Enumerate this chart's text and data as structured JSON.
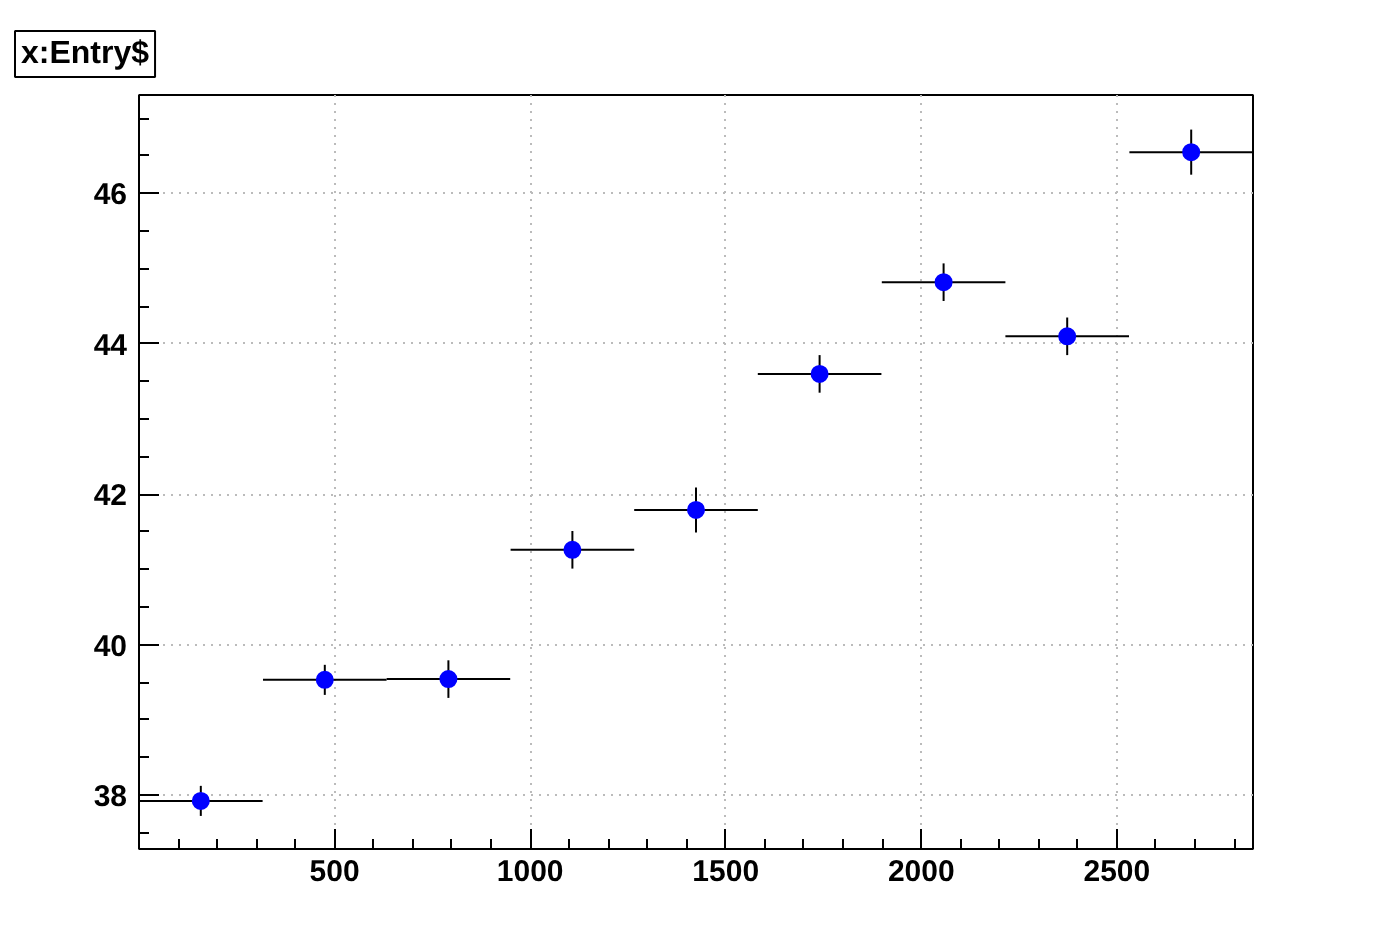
{
  "chart_data": {
    "type": "scatter",
    "title": "x:Entry$",
    "x": [
      158,
      475,
      791,
      1108,
      1424,
      1740,
      2057,
      2373,
      2690
    ],
    "series": [
      {
        "color": "#0000ff",
        "values": [
          37.92,
          39.53,
          39.54,
          41.26,
          41.79,
          43.6,
          44.82,
          44.1,
          46.55
        ],
        "errors": [
          0.2,
          0.2,
          0.25,
          0.25,
          0.3,
          0.25,
          0.25,
          0.25,
          0.3
        ],
        "xerrors": [
          158,
          158,
          158,
          158,
          158,
          158,
          158,
          158,
          158
        ]
      }
    ],
    "xlim": [
      0,
      2848
    ],
    "ylim": [
      37.28,
      47.31
    ],
    "xticks": [
      500,
      1000,
      1500,
      2000,
      2500
    ],
    "yticks": [
      38,
      40,
      42,
      44,
      46
    ],
    "grid": true,
    "marker": "circle"
  }
}
